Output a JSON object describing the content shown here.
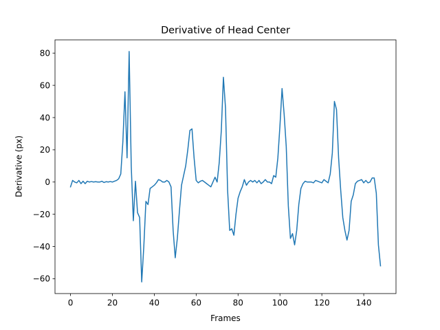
{
  "chart_data": {
    "type": "line",
    "title": "Derivative of Head Center",
    "xlabel": "Frames",
    "ylabel": "Derivative (px)",
    "xlim": [
      -7.4,
      155.4
    ],
    "ylim": [
      -69.2,
      88.2
    ],
    "xticks": [
      0,
      20,
      40,
      60,
      80,
      100,
      120,
      140
    ],
    "yticks": [
      -60,
      -40,
      -20,
      0,
      20,
      40,
      60,
      80
    ],
    "grid": false,
    "series": [
      {
        "color": "#1f77b4",
        "x": [
          0,
          1,
          2,
          3,
          4,
          5,
          6,
          7,
          8,
          9,
          10,
          11,
          12,
          13,
          14,
          15,
          16,
          17,
          18,
          19,
          20,
          21,
          22,
          23,
          24,
          25,
          26,
          27,
          28,
          29,
          30,
          31,
          32,
          33,
          34,
          35,
          36,
          37,
          38,
          39,
          40,
          41,
          42,
          43,
          44,
          45,
          46,
          47,
          48,
          49,
          50,
          51,
          52,
          53,
          54,
          55,
          56,
          57,
          58,
          59,
          60,
          61,
          62,
          63,
          64,
          65,
          66,
          67,
          68,
          69,
          70,
          71,
          72,
          73,
          74,
          75,
          76,
          77,
          78,
          79,
          80,
          81,
          82,
          83,
          84,
          85,
          86,
          87,
          88,
          89,
          90,
          91,
          92,
          93,
          94,
          95,
          96,
          97,
          98,
          99,
          100,
          101,
          102,
          103,
          104,
          105,
          106,
          107,
          108,
          109,
          110,
          111,
          112,
          113,
          114,
          115,
          116,
          117,
          118,
          119,
          120,
          121,
          122,
          123,
          124,
          125,
          126,
          127,
          128,
          129,
          130,
          131,
          132,
          133,
          134,
          135,
          136,
          137,
          138,
          139,
          140,
          141,
          142,
          143,
          144,
          145,
          146,
          147,
          148
        ],
        "y": [
          -3,
          1,
          0,
          -0.5,
          1,
          -1,
          0.5,
          -1,
          0.5,
          0,
          0.3,
          0,
          0.2,
          0,
          0,
          0.5,
          -0.3,
          0.2,
          0,
          0.3,
          0,
          0.5,
          1,
          2,
          5,
          25,
          56,
          15,
          81,
          10,
          -24,
          0.5,
          -19,
          -22,
          -62,
          -40,
          -12,
          -14,
          -4,
          -3,
          -2,
          -0.5,
          1.5,
          1,
          0,
          0,
          1,
          0,
          -3,
          -30,
          -47,
          -35,
          -18,
          -2,
          4,
          10,
          20,
          32,
          33,
          15,
          1,
          -0.5,
          0.5,
          1,
          0,
          -1,
          -2,
          -3,
          0,
          3,
          0,
          12,
          32,
          65,
          46,
          -5,
          -30,
          -29,
          -33,
          -20,
          -10,
          -6,
          -3,
          1.5,
          -2,
          0,
          1,
          0,
          1,
          -0.5,
          1,
          -1,
          0,
          1.5,
          0,
          0,
          -1,
          4,
          3,
          15,
          35,
          58,
          42,
          22,
          -15,
          -35,
          -32,
          -39,
          -30,
          -14,
          -4,
          -1,
          0.5,
          0,
          0,
          0,
          -0.5,
          1,
          0.5,
          0,
          -0.5,
          1.5,
          0.5,
          -0.5,
          5,
          18,
          50,
          45,
          15,
          -5,
          -22,
          -30,
          -36,
          -30,
          -12,
          -8,
          -1,
          0.5,
          1,
          1.5,
          -0.5,
          1,
          -0.5,
          0,
          2.5,
          2.5,
          -7,
          -39,
          -52
        ]
      }
    ]
  }
}
